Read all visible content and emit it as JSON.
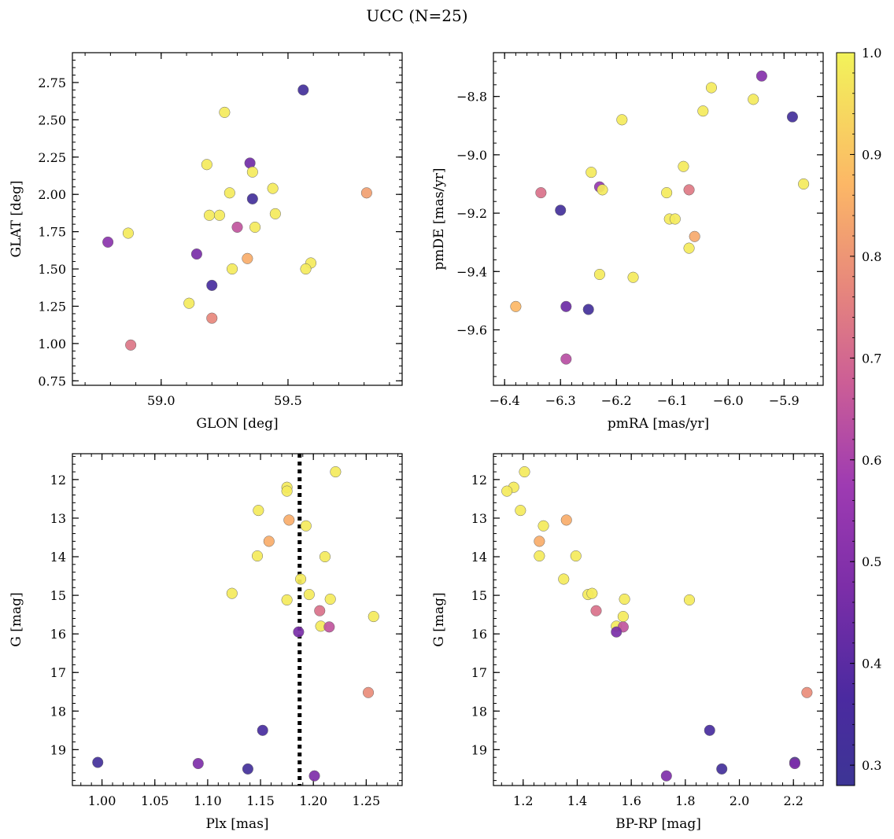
{
  "figure": {
    "title": "UCC (N=25)",
    "colorbar": {
      "range": [
        0.28,
        1.0
      ],
      "ticks": [
        0.3,
        0.4,
        0.5,
        0.6,
        0.7,
        0.8,
        0.9,
        1.0
      ],
      "tick_labels": [
        "0.3",
        "0.4",
        "0.5",
        "0.6",
        "0.7",
        "0.8",
        "0.9",
        "1.0"
      ],
      "colormap": "plasma"
    }
  },
  "chart_data": [
    {
      "type": "scatter",
      "id": "glon-glat",
      "xlabel": "GLON [deg]",
      "ylabel": "GLAT [deg]",
      "xlim": [
        58.65,
        59.95
      ],
      "ylim": [
        0.72,
        2.95
      ],
      "xticks": [
        59.0,
        59.5
      ],
      "xtick_labels": [
        "59.0",
        "59.5"
      ],
      "yticks": [
        0.75,
        1.0,
        1.25,
        1.5,
        1.75,
        2.0,
        2.25,
        2.5,
        2.75
      ],
      "ytick_labels": [
        "0.75",
        "1.00",
        "1.25",
        "1.50",
        "1.75",
        "2.00",
        "2.25",
        "2.50",
        "2.75"
      ],
      "points": [
        {
          "x": 59.56,
          "y": 2.7,
          "c": 0.32
        },
        {
          "x": 59.25,
          "y": 2.55,
          "c": 0.98
        },
        {
          "x": 59.18,
          "y": 2.2,
          "c": 0.98
        },
        {
          "x": 59.35,
          "y": 2.21,
          "c": 0.45
        },
        {
          "x": 59.36,
          "y": 2.15,
          "c": 0.98
        },
        {
          "x": 59.27,
          "y": 2.01,
          "c": 0.98
        },
        {
          "x": 59.36,
          "y": 1.97,
          "c": 0.32
        },
        {
          "x": 59.44,
          "y": 2.04,
          "c": 0.98
        },
        {
          "x": 59.81,
          "y": 2.01,
          "c": 0.82
        },
        {
          "x": 59.19,
          "y": 1.86,
          "c": 0.98
        },
        {
          "x": 59.23,
          "y": 1.86,
          "c": 0.98
        },
        {
          "x": 59.45,
          "y": 1.87,
          "c": 0.98
        },
        {
          "x": 59.3,
          "y": 1.78,
          "c": 0.65
        },
        {
          "x": 59.37,
          "y": 1.78,
          "c": 0.98
        },
        {
          "x": 58.87,
          "y": 1.74,
          "c": 0.98
        },
        {
          "x": 58.79,
          "y": 1.68,
          "c": 0.52
        },
        {
          "x": 59.14,
          "y": 1.6,
          "c": 0.47
        },
        {
          "x": 59.34,
          "y": 1.57,
          "c": 0.85
        },
        {
          "x": 59.59,
          "y": 1.54,
          "c": 0.98
        },
        {
          "x": 59.28,
          "y": 1.5,
          "c": 0.98
        },
        {
          "x": 59.57,
          "y": 1.5,
          "c": 0.98
        },
        {
          "x": 59.2,
          "y": 1.39,
          "c": 0.35
        },
        {
          "x": 59.11,
          "y": 1.27,
          "c": 0.98
        },
        {
          "x": 59.2,
          "y": 1.17,
          "c": 0.77
        },
        {
          "x": 58.88,
          "y": 0.99,
          "c": 0.73
        }
      ]
    },
    {
      "type": "scatter",
      "id": "pmra-pmde",
      "xlabel": "pmRA [mas/yr]",
      "ylabel": "pmDE [mas/yr]",
      "xlim": [
        -6.42,
        -5.83
      ],
      "ylim": [
        -9.79,
        -8.65
      ],
      "xticks": [
        -6.4,
        -6.3,
        -6.2,
        -6.1,
        -6.0,
        -5.9
      ],
      "xtick_labels": [
        "−6.4",
        "−6.3",
        "−6.2",
        "−6.1",
        "−6.0",
        "−5.9"
      ],
      "yticks": [
        -9.6,
        -9.4,
        -9.2,
        -9.0,
        -8.8
      ],
      "ytick_labels": [
        "−9.6",
        "−9.4",
        "−9.2",
        "−9.0",
        "−8.8"
      ],
      "points": [
        {
          "x": -5.94,
          "y": -8.73,
          "c": 0.5
        },
        {
          "x": -6.03,
          "y": -8.77,
          "c": 0.98
        },
        {
          "x": -5.955,
          "y": -8.81,
          "c": 0.98
        },
        {
          "x": -6.045,
          "y": -8.85,
          "c": 0.98
        },
        {
          "x": -5.885,
          "y": -8.87,
          "c": 0.32
        },
        {
          "x": -6.19,
          "y": -8.88,
          "c": 0.98
        },
        {
          "x": -6.08,
          "y": -9.04,
          "c": 0.98
        },
        {
          "x": -6.245,
          "y": -9.06,
          "c": 0.98
        },
        {
          "x": -5.865,
          "y": -9.1,
          "c": 0.98
        },
        {
          "x": -6.23,
          "y": -9.11,
          "c": 0.55
        },
        {
          "x": -6.225,
          "y": -9.12,
          "c": 0.98
        },
        {
          "x": -6.335,
          "y": -9.13,
          "c": 0.72
        },
        {
          "x": -6.11,
          "y": -9.13,
          "c": 0.98
        },
        {
          "x": -6.07,
          "y": -9.12,
          "c": 0.74
        },
        {
          "x": -6.3,
          "y": -9.19,
          "c": 0.32
        },
        {
          "x": -6.105,
          "y": -9.22,
          "c": 0.98
        },
        {
          "x": -6.095,
          "y": -9.22,
          "c": 0.98
        },
        {
          "x": -6.06,
          "y": -9.28,
          "c": 0.84
        },
        {
          "x": -6.07,
          "y": -9.32,
          "c": 0.98
        },
        {
          "x": -6.23,
          "y": -9.41,
          "c": 0.98
        },
        {
          "x": -6.17,
          "y": -9.42,
          "c": 0.98
        },
        {
          "x": -6.38,
          "y": -9.52,
          "c": 0.87
        },
        {
          "x": -6.29,
          "y": -9.52,
          "c": 0.44
        },
        {
          "x": -6.25,
          "y": -9.53,
          "c": 0.32
        },
        {
          "x": -6.29,
          "y": -9.7,
          "c": 0.63
        }
      ]
    },
    {
      "type": "scatter",
      "id": "plx-g",
      "xlabel": "Plx [mas]",
      "ylabel": "G [mag]",
      "xlim": [
        0.972,
        1.284
      ],
      "ylim": [
        19.93,
        11.33
      ],
      "y_inverted": true,
      "vertical_line": {
        "x": 1.187,
        "style": "dotted"
      },
      "xticks": [
        1.0,
        1.05,
        1.1,
        1.15,
        1.2,
        1.25
      ],
      "xtick_labels": [
        "1.00",
        "1.05",
        "1.10",
        "1.15",
        "1.20",
        "1.25"
      ],
      "yticks": [
        12,
        13,
        14,
        15,
        16,
        17,
        18,
        19
      ],
      "ytick_labels": [
        "12",
        "13",
        "14",
        "15",
        "16",
        "17",
        "18",
        "19"
      ],
      "points": [
        {
          "x": 1.221,
          "y": 11.8,
          "c": 0.98
        },
        {
          "x": 1.175,
          "y": 12.2,
          "c": 0.98
        },
        {
          "x": 1.175,
          "y": 12.3,
          "c": 0.98
        },
        {
          "x": 1.148,
          "y": 12.8,
          "c": 0.98
        },
        {
          "x": 1.177,
          "y": 13.05,
          "c": 0.85
        },
        {
          "x": 1.193,
          "y": 13.2,
          "c": 0.98
        },
        {
          "x": 1.158,
          "y": 13.6,
          "c": 0.85
        },
        {
          "x": 1.147,
          "y": 13.98,
          "c": 0.98
        },
        {
          "x": 1.211,
          "y": 14.0,
          "c": 0.98
        },
        {
          "x": 1.188,
          "y": 14.58,
          "c": 0.98
        },
        {
          "x": 1.123,
          "y": 14.95,
          "c": 0.98
        },
        {
          "x": 1.196,
          "y": 14.98,
          "c": 0.98
        },
        {
          "x": 1.175,
          "y": 15.12,
          "c": 0.98
        },
        {
          "x": 1.216,
          "y": 15.1,
          "c": 0.98
        },
        {
          "x": 1.206,
          "y": 15.4,
          "c": 0.72
        },
        {
          "x": 1.257,
          "y": 15.55,
          "c": 0.98
        },
        {
          "x": 1.207,
          "y": 15.8,
          "c": 0.98
        },
        {
          "x": 1.215,
          "y": 15.82,
          "c": 0.65
        },
        {
          "x": 1.186,
          "y": 15.95,
          "c": 0.47
        },
        {
          "x": 1.252,
          "y": 17.52,
          "c": 0.78
        },
        {
          "x": 1.152,
          "y": 18.5,
          "c": 0.35
        },
        {
          "x": 0.996,
          "y": 19.33,
          "c": 0.32
        },
        {
          "x": 1.091,
          "y": 19.36,
          "c": 0.48
        },
        {
          "x": 1.138,
          "y": 19.5,
          "c": 0.32
        },
        {
          "x": 1.201,
          "y": 19.68,
          "c": 0.48
        }
      ]
    },
    {
      "type": "scatter",
      "id": "bprp-g",
      "xlabel": "BP-RP [mag]",
      "ylabel": "G [mag]",
      "xlim": [
        1.09,
        2.31
      ],
      "ylim": [
        19.93,
        11.33
      ],
      "y_inverted": true,
      "xticks": [
        1.2,
        1.4,
        1.6,
        1.8,
        2.0,
        2.2
      ],
      "xtick_labels": [
        "1.2",
        "1.4",
        "1.6",
        "1.8",
        "2.0",
        "2.2"
      ],
      "yticks": [
        12,
        13,
        14,
        15,
        16,
        17,
        18,
        19
      ],
      "ytick_labels": [
        "12",
        "13",
        "14",
        "15",
        "16",
        "17",
        "18",
        "19"
      ],
      "points": [
        {
          "x": 1.205,
          "y": 11.8,
          "c": 0.98
        },
        {
          "x": 1.165,
          "y": 12.2,
          "c": 0.98
        },
        {
          "x": 1.14,
          "y": 12.3,
          "c": 0.98
        },
        {
          "x": 1.19,
          "y": 12.8,
          "c": 0.98
        },
        {
          "x": 1.36,
          "y": 13.05,
          "c": 0.85
        },
        {
          "x": 1.275,
          "y": 13.2,
          "c": 0.98
        },
        {
          "x": 1.26,
          "y": 13.6,
          "c": 0.85
        },
        {
          "x": 1.26,
          "y": 13.98,
          "c": 0.98
        },
        {
          "x": 1.395,
          "y": 13.98,
          "c": 0.98
        },
        {
          "x": 1.35,
          "y": 14.58,
          "c": 0.98
        },
        {
          "x": 1.44,
          "y": 14.98,
          "c": 0.98
        },
        {
          "x": 1.455,
          "y": 14.95,
          "c": 0.98
        },
        {
          "x": 1.575,
          "y": 15.1,
          "c": 0.98
        },
        {
          "x": 1.815,
          "y": 15.12,
          "c": 0.98
        },
        {
          "x": 1.47,
          "y": 15.4,
          "c": 0.72
        },
        {
          "x": 1.57,
          "y": 15.55,
          "c": 0.98
        },
        {
          "x": 1.545,
          "y": 15.8,
          "c": 0.98
        },
        {
          "x": 1.57,
          "y": 15.82,
          "c": 0.65
        },
        {
          "x": 1.545,
          "y": 15.95,
          "c": 0.47
        },
        {
          "x": 2.25,
          "y": 17.52,
          "c": 0.78
        },
        {
          "x": 1.89,
          "y": 18.5,
          "c": 0.35
        },
        {
          "x": 2.205,
          "y": 19.33,
          "c": 0.32
        },
        {
          "x": 2.205,
          "y": 19.36,
          "c": 0.48
        },
        {
          "x": 1.935,
          "y": 19.5,
          "c": 0.32
        },
        {
          "x": 1.73,
          "y": 19.68,
          "c": 0.48
        }
      ]
    }
  ]
}
